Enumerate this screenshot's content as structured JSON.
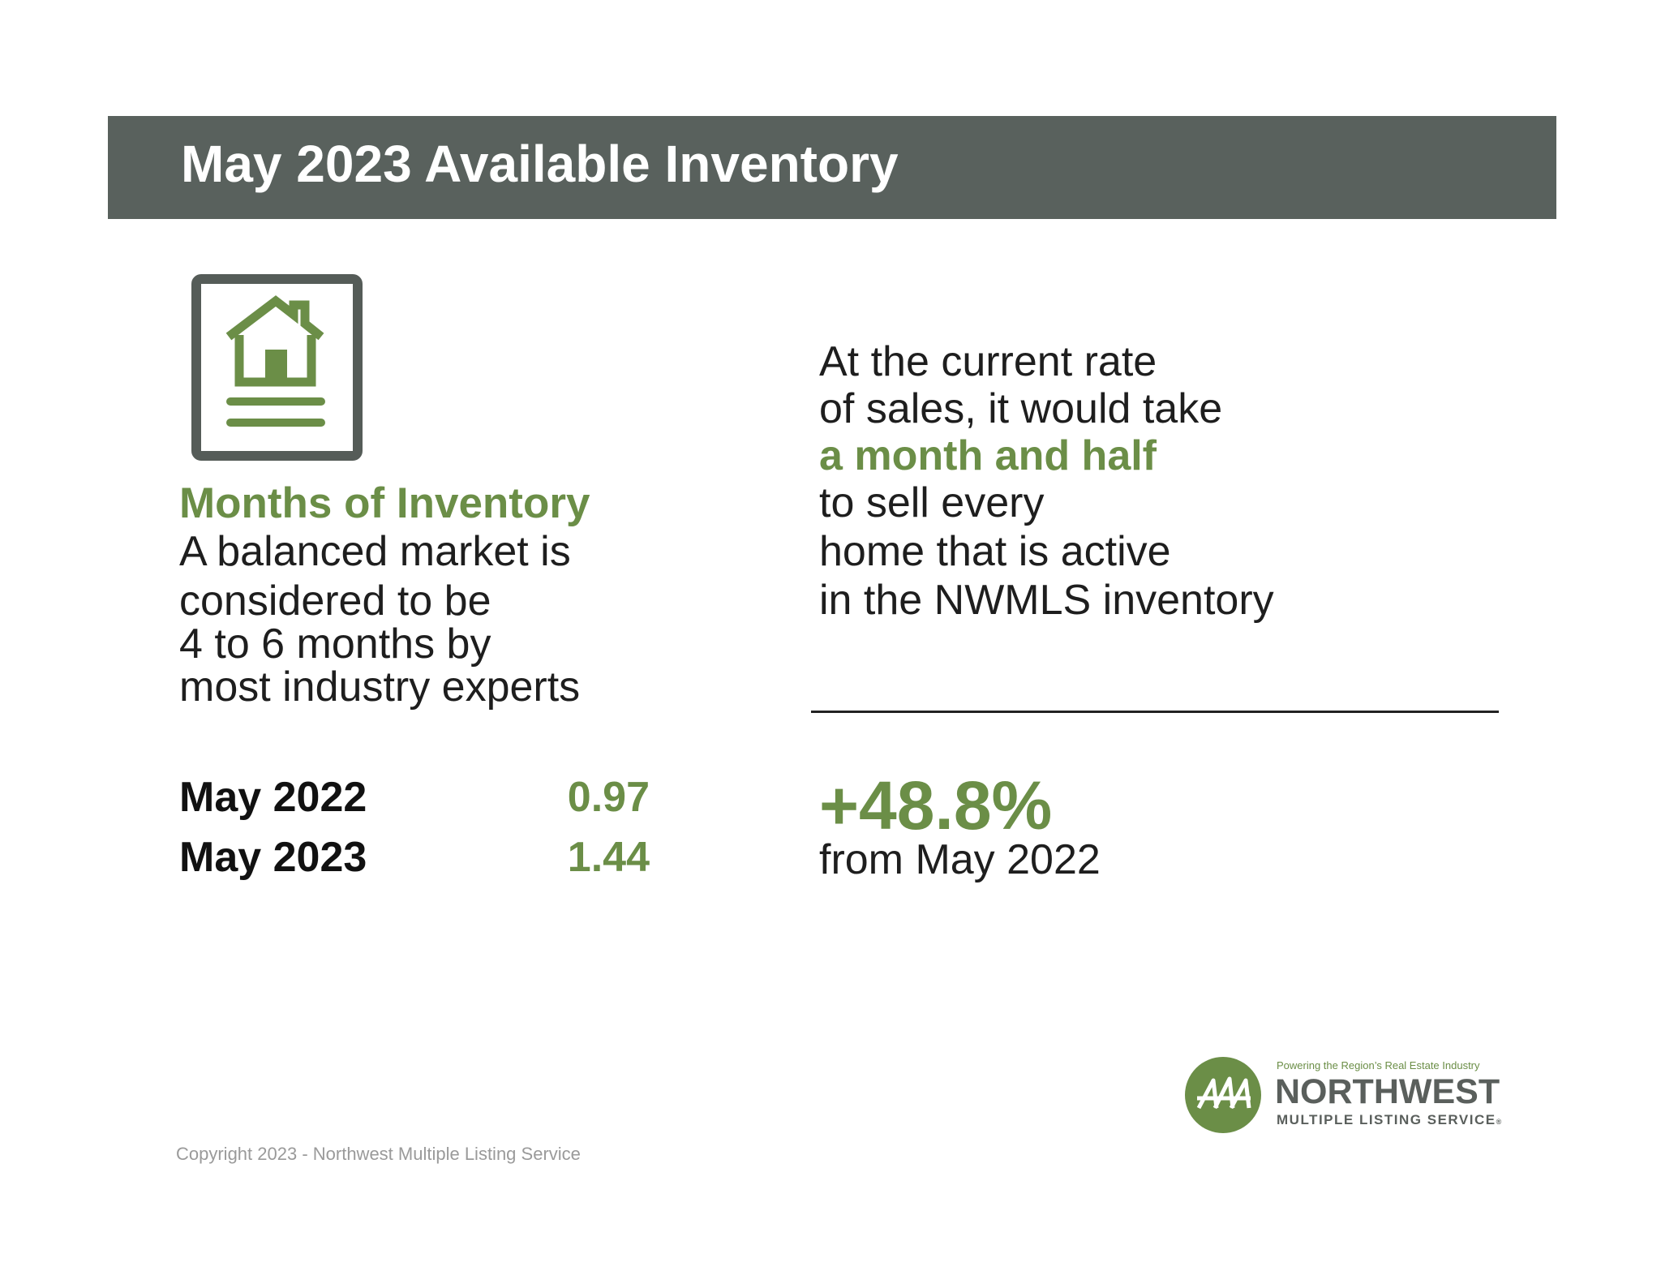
{
  "header": {
    "title": "May 2023 Available Inventory"
  },
  "icon": {
    "name": "house-document-icon",
    "frame_color": "#555c58",
    "accent_color": "#6b8e47"
  },
  "left": {
    "heading": "Months of Inventory",
    "body_lines": [
      "A balanced market is",
      "considered to be",
      "4 to 6 months by",
      "most industry experts"
    ],
    "stats": [
      {
        "label": "May 2022",
        "value": "0.97"
      },
      {
        "label": "May 2023",
        "value": "1.44"
      }
    ]
  },
  "right": {
    "lines": [
      "At the current rate",
      "of sales, it would take",
      "a month and half",
      "to sell every",
      "home that is active",
      "in the NWMLS inventory"
    ],
    "change_value": "+48.8%",
    "change_caption": "from May 2022"
  },
  "footer": {
    "copyright": "Copyright 2023 - Northwest Multiple Listing Service"
  },
  "logo": {
    "tagline": "Powering the Region’s Real Estate Industry",
    "name": "NORTHWEST",
    "subtitle": "MULTIPLE LISTING SERVICE",
    "registered_mark": "®",
    "brand_color": "#6b8e47"
  },
  "colors": {
    "header_bg": "#59615d",
    "accent_green": "#6b8e47",
    "text_dark": "#1e1e1e"
  }
}
